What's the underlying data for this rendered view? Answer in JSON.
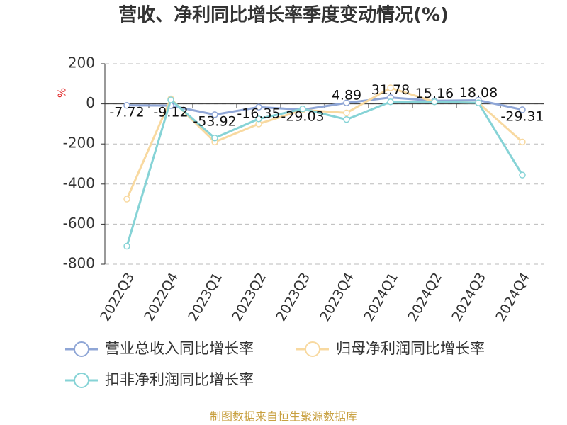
{
  "chart_data": {
    "type": "line",
    "title": "营收、净利同比增长率季度变动情况(%)",
    "y_label": "%",
    "source": "制图数据来自恒生聚源数据库",
    "categories": [
      "2022Q3",
      "2022Q4",
      "2023Q1",
      "2023Q2",
      "2023Q3",
      "2023Q4",
      "2024Q1",
      "2024Q2",
      "2024Q3",
      "2024Q4"
    ],
    "series": [
      {
        "name": "营业总收入同比增长率",
        "color": "#8fa6d6",
        "values": [
          -7.72,
          -9.12,
          -53.92,
          -16.35,
          -29.03,
          4.89,
          31.78,
          15.16,
          18.08,
          -29.31
        ],
        "show_labels": true
      },
      {
        "name": "归母净利润同比增长率",
        "color": "#f8d9a0",
        "values": [
          -475,
          25,
          -190,
          -100,
          -30,
          -45,
          80,
          10,
          5,
          -190
        ]
      },
      {
        "name": "扣非净利润同比增长率",
        "color": "#86d3d6",
        "values": [
          -710,
          20,
          -170,
          -75,
          -25,
          -78,
          10,
          10,
          5,
          -355
        ]
      }
    ],
    "ylim": [
      -800,
      200
    ],
    "yticks": [
      -800,
      -600,
      -400,
      -200,
      0,
      200
    ],
    "grid": true
  }
}
